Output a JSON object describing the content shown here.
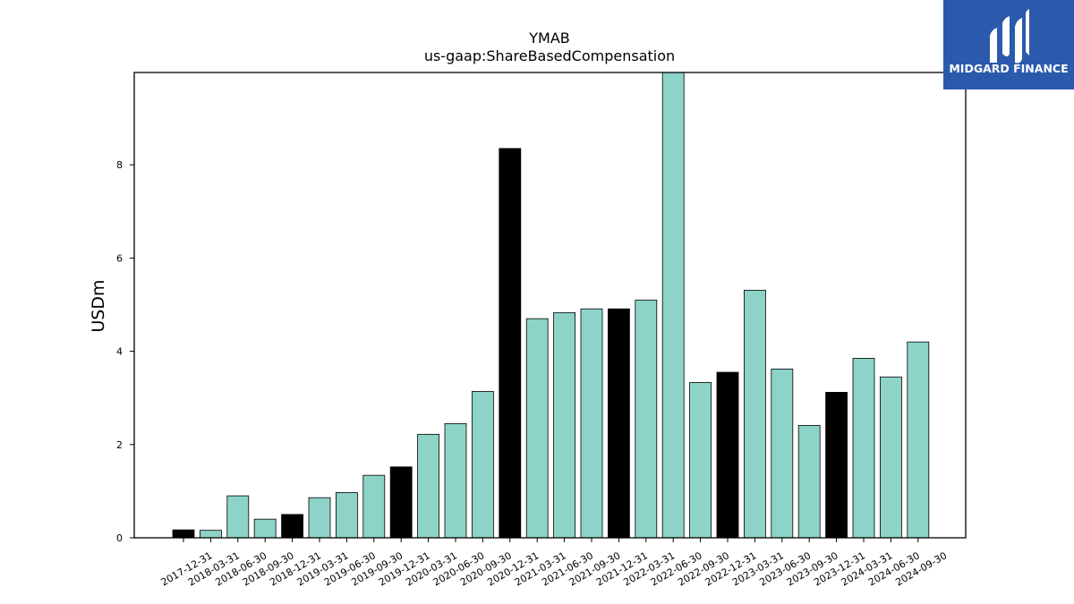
{
  "chart_data": {
    "type": "bar",
    "title": "YMAB",
    "subtitle": "us-gaap:ShareBasedCompensation",
    "xlabel": "",
    "ylabel": "USDm",
    "ylim": [
      0,
      9.98
    ],
    "yticks": [
      0,
      2,
      4,
      6,
      8
    ],
    "grid": false,
    "categories": [
      "2017-12-31",
      "2018-03-31",
      "2018-06-30",
      "2018-09-30",
      "2018-12-31",
      "2019-03-31",
      "2019-06-30",
      "2019-09-30",
      "2019-12-31",
      "2020-03-31",
      "2020-06-30",
      "2020-09-30",
      "2020-12-31",
      "2021-03-31",
      "2021-06-30",
      "2021-09-30",
      "2021-12-31",
      "2022-03-31",
      "2022-06-30",
      "2022-09-30",
      "2022-12-31",
      "2023-03-31",
      "2023-06-30",
      "2023-09-30",
      "2023-12-31",
      "2024-03-31",
      "2024-06-30",
      "2024-09-30"
    ],
    "values": [
      0.17,
      0.16,
      0.9,
      0.4,
      0.5,
      0.86,
      0.97,
      1.34,
      1.52,
      2.22,
      2.45,
      3.14,
      8.35,
      4.7,
      4.83,
      4.91,
      4.91,
      5.1,
      10.0,
      3.33,
      3.55,
      5.31,
      3.62,
      2.41,
      3.12,
      3.85,
      3.45,
      4.2
    ],
    "bar_colors": [
      "#000000",
      "#8dd3c7",
      "#8dd3c7",
      "#8dd3c7",
      "#000000",
      "#8dd3c7",
      "#8dd3c7",
      "#8dd3c7",
      "#000000",
      "#8dd3c7",
      "#8dd3c7",
      "#8dd3c7",
      "#000000",
      "#8dd3c7",
      "#8dd3c7",
      "#8dd3c7",
      "#000000",
      "#8dd3c7",
      "#8dd3c7",
      "#8dd3c7",
      "#000000",
      "#8dd3c7",
      "#8dd3c7",
      "#8dd3c7",
      "#000000",
      "#8dd3c7",
      "#8dd3c7",
      "#8dd3c7"
    ]
  },
  "logo": {
    "text": "MIDGARD FINANCE",
    "background": "#2b5aad"
  }
}
